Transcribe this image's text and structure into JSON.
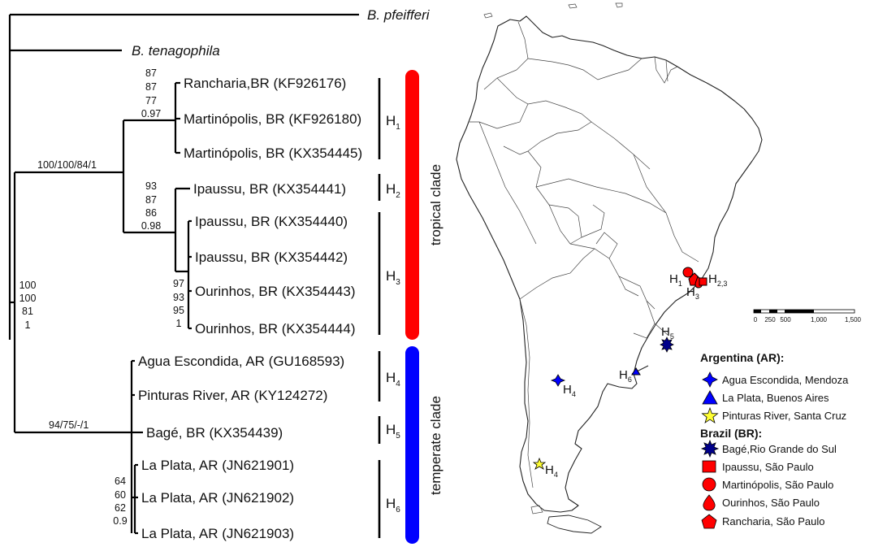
{
  "tree": {
    "outgroups": [
      {
        "id": "pfeifferi",
        "label": "B. pfeifferi"
      },
      {
        "id": "tenagophila",
        "label": "B. tenagophila"
      }
    ],
    "tips": [
      {
        "label": "Rancharia,BR (KF926176)"
      },
      {
        "label": "Martinópolis, BR (KF926180)"
      },
      {
        "label": "Martinópolis, BR (KX354445)"
      },
      {
        "label": "Ipaussu, BR (KX354441)"
      },
      {
        "label": "Ipaussu, BR (KX354440)"
      },
      {
        "label": "Ipaussu, BR (KX354442)"
      },
      {
        "label": "Ourinhos, BR (KX354443)"
      },
      {
        "label": "Ourinhos, BR (KX354444)"
      },
      {
        "label": "Agua Escondida, AR (GU168593)"
      },
      {
        "label": "Pinturas River, AR (KY124272)"
      },
      {
        "label": "Bagé, BR (KX354439)"
      },
      {
        "label": "La Plata, AR (JN621901)"
      },
      {
        "label": "La Plata, AR (JN621902)"
      },
      {
        "label": "La Plata, AR (JN621903)"
      }
    ],
    "supports": {
      "tropical_node": "100/100/84/1",
      "temperate_node": "94/75/-/1",
      "root_node": [
        "100",
        "100",
        "81",
        "1"
      ],
      "h1_node": [
        "87",
        "87",
        "77",
        "0.97"
      ],
      "h23_node": [
        "93",
        "87",
        "86",
        "0.98"
      ],
      "h3_node": [
        "97",
        "93",
        "95",
        "1"
      ],
      "h6_node": [
        "64",
        "60",
        "62",
        "0.9"
      ]
    },
    "haplotypes": [
      {
        "main": "H",
        "sub": "1"
      },
      {
        "main": "H",
        "sub": "2"
      },
      {
        "main": "H",
        "sub": "3"
      },
      {
        "main": "H",
        "sub": "4"
      },
      {
        "main": "H",
        "sub": "5"
      },
      {
        "main": "H",
        "sub": "6"
      }
    ],
    "clades": [
      {
        "label": "tropical clade",
        "color": "#ff0000"
      },
      {
        "label": "temperate clade",
        "color": "#0000ff"
      }
    ]
  },
  "map": {
    "labels": [
      {
        "id": "h1",
        "main": "H",
        "sub": "1"
      },
      {
        "id": "h23",
        "main": "H",
        "sub": "2,3"
      },
      {
        "id": "h3",
        "main": "H",
        "sub": "3"
      },
      {
        "id": "h5",
        "main": "H",
        "sub": "5"
      },
      {
        "id": "h6",
        "main": "H",
        "sub": "6"
      },
      {
        "id": "h4a",
        "main": "H",
        "sub": "4"
      },
      {
        "id": "h4b",
        "main": "H",
        "sub": "4"
      }
    ],
    "scale": {
      "ticks": [
        "0",
        "250",
        "500",
        "1,000",
        "1,500"
      ]
    }
  },
  "legend": {
    "groups": [
      {
        "heading": "Argentina (AR):",
        "items": [
          {
            "symbol": "star4-blue",
            "label": "Agua Escondida, Mendoza"
          },
          {
            "symbol": "triangle-blue",
            "label": "La Plata, Buenos Aires"
          },
          {
            "symbol": "star5-yellow",
            "label": "Pinturas River, Santa Cruz"
          }
        ]
      },
      {
        "heading": "Brazil (BR):",
        "items": [
          {
            "symbol": "starburst-blue",
            "label": "Bagé,Rio Grande do Sul"
          },
          {
            "symbol": "square-red",
            "label": "Ipaussu, São Paulo"
          },
          {
            "symbol": "circle-red",
            "label": "Martinópolis, São Paulo"
          },
          {
            "symbol": "drop-red",
            "label": "Ourinhos, São Paulo"
          },
          {
            "symbol": "pentagon-red",
            "label": "Rancharia, São Paulo"
          }
        ]
      }
    ]
  }
}
